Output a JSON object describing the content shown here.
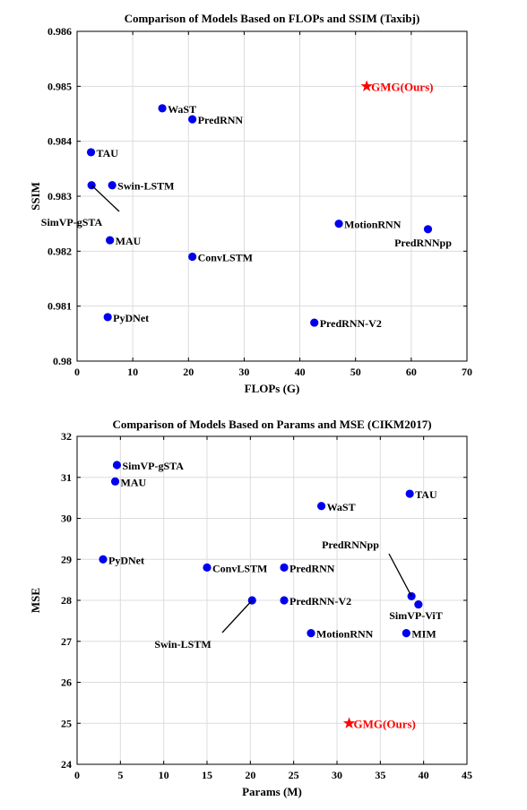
{
  "chart_data": [
    {
      "type": "scatter",
      "title": "Comparison of Models Based on FLOPs and SSIM (Taxibj)",
      "xlabel": "FLOPs (G)",
      "ylabel": "SSIM",
      "xlim": [
        0,
        70
      ],
      "ylim": [
        0.98,
        0.986
      ],
      "xticks": [
        0,
        10,
        20,
        30,
        40,
        50,
        60,
        70
      ],
      "yticks": [
        0.98,
        0.981,
        0.982,
        0.983,
        0.984,
        0.985,
        0.986
      ],
      "ytick_labels": [
        "0.98",
        "0.981",
        "0.982",
        "0.983",
        "0.984",
        "0.985",
        "0.986"
      ],
      "grid": true,
      "colors": {
        "point": "#0000ee",
        "ours": "#ff0000"
      },
      "points": [
        {
          "label": "WaST",
          "x": 15.3,
          "y": 0.9846
        },
        {
          "label": "PredRNN",
          "x": 20.7,
          "y": 0.9844
        },
        {
          "label": "TAU",
          "x": 2.5,
          "y": 0.9838
        },
        {
          "label": "Swin-LSTM",
          "x": 6.3,
          "y": 0.9832
        },
        {
          "label": "SimVP-gSTA",
          "x": 2.6,
          "y": 0.9832,
          "callout": true
        },
        {
          "label": "MAU",
          "x": 5.9,
          "y": 0.9822
        },
        {
          "label": "ConvLSTM",
          "x": 20.7,
          "y": 0.9819
        },
        {
          "label": "PyDNet",
          "x": 5.5,
          "y": 0.9808
        },
        {
          "label": "MotionRNN",
          "x": 47.0,
          "y": 0.9825
        },
        {
          "label": "PredRNNpp",
          "x": 63.0,
          "y": 0.9824
        },
        {
          "label": "PredRNN-V2",
          "x": 42.6,
          "y": 0.9807
        },
        {
          "label": "GMG(Ours)",
          "x": 52.0,
          "y": 0.985,
          "ours": true
        }
      ]
    },
    {
      "type": "scatter",
      "title": "Comparison of Models Based on Params and MSE (CIKM2017)",
      "xlabel": "Params (M)",
      "ylabel": "MSE",
      "xlim": [
        0,
        45
      ],
      "ylim": [
        24,
        32
      ],
      "xticks": [
        0,
        5,
        10,
        15,
        20,
        25,
        30,
        35,
        40,
        45
      ],
      "yticks": [
        24,
        25,
        26,
        27,
        28,
        29,
        30,
        31,
        32
      ],
      "ytick_labels": [
        "24",
        "25",
        "26",
        "27",
        "28",
        "29",
        "30",
        "31",
        "32"
      ],
      "grid": true,
      "colors": {
        "point": "#0000ee",
        "ours": "#ff0000"
      },
      "points": [
        {
          "label": "SimVP-gSTA",
          "x": 4.6,
          "y": 31.3
        },
        {
          "label": "MAU",
          "x": 4.4,
          "y": 30.9
        },
        {
          "label": "TAU",
          "x": 38.4,
          "y": 30.6
        },
        {
          "label": "WaST",
          "x": 28.2,
          "y": 30.3
        },
        {
          "label": "PyDNet",
          "x": 3.0,
          "y": 29.0
        },
        {
          "label": "ConvLSTM",
          "x": 15.0,
          "y": 28.8
        },
        {
          "label": "PredRNN",
          "x": 23.9,
          "y": 28.8
        },
        {
          "label": "PredRNNpp",
          "x": 38.6,
          "y": 28.1,
          "callout": true
        },
        {
          "label": "SimVP-ViT",
          "x": 39.4,
          "y": 27.9
        },
        {
          "label": "Swin-LSTM",
          "x": 20.2,
          "y": 28.0,
          "callout": true
        },
        {
          "label": "PredRNN-V2",
          "x": 23.9,
          "y": 28.0
        },
        {
          "label": "MotionRNN",
          "x": 27.0,
          "y": 27.2
        },
        {
          "label": "MIM",
          "x": 38.0,
          "y": 27.2
        },
        {
          "label": "GMG(Ours)",
          "x": 31.4,
          "y": 25.0,
          "ours": true
        }
      ]
    }
  ]
}
